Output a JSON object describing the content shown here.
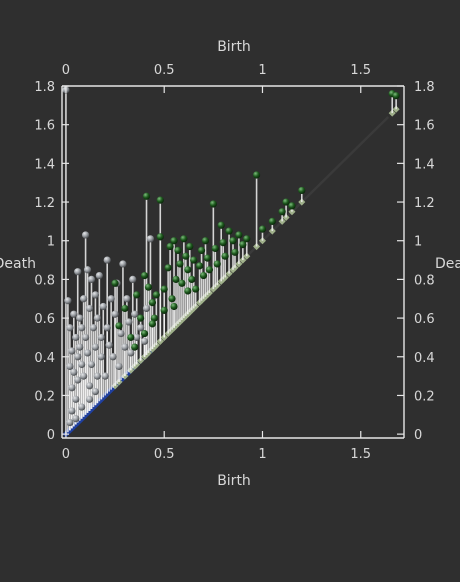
{
  "chart_data": {
    "type": "scatter",
    "title": "",
    "xlabel": "Birth",
    "ylabel": "Death",
    "x2label": "Birth",
    "y2label": "Death",
    "xlim": [
      -0.02,
      1.72
    ],
    "ylim": [
      -0.02,
      1.8
    ],
    "xticks": [
      0,
      0.5,
      1,
      1.5
    ],
    "xtick_labels": [
      "0",
      "0.5",
      "1",
      "1.5"
    ],
    "yticks": [
      0,
      0.2,
      0.4,
      0.6,
      0.8,
      1,
      1.2,
      1.4,
      1.6,
      1.8
    ],
    "ytick_labels": [
      "0",
      "0.2",
      "0.4",
      "0.6",
      "0.8",
      "1",
      "1.2",
      "1.4",
      "1.6",
      "1.8"
    ],
    "grid": false,
    "legend": "none",
    "diagonal": [
      [
        0,
        0
      ],
      [
        1.64,
        1.64
      ]
    ],
    "colors": {
      "background": "#2f2f2f",
      "axes": "#e6e6e6",
      "diagonal": "#3a3a3a",
      "stem": "#f2f2f2"
    },
    "series": [
      {
        "color": "#9a9ea3",
        "diagonal_color": "#1f3f9f",
        "points": [
          [
            0.0,
            1.78
          ],
          [
            0.01,
            0.69
          ],
          [
            0.02,
            0.35
          ],
          [
            0.02,
            0.55
          ],
          [
            0.03,
            0.24
          ],
          [
            0.03,
            0.43
          ],
          [
            0.04,
            0.32
          ],
          [
            0.04,
            0.62
          ],
          [
            0.05,
            0.5
          ],
          [
            0.05,
            0.18
          ],
          [
            0.06,
            0.4
          ],
          [
            0.06,
            0.28
          ],
          [
            0.06,
            0.84
          ],
          [
            0.07,
            0.6
          ],
          [
            0.07,
            0.45
          ],
          [
            0.08,
            0.36
          ],
          [
            0.08,
            0.55
          ],
          [
            0.09,
            0.3
          ],
          [
            0.09,
            0.7
          ],
          [
            0.1,
            1.03
          ],
          [
            0.1,
            0.5
          ],
          [
            0.11,
            0.85
          ],
          [
            0.11,
            0.42
          ],
          [
            0.12,
            0.25
          ],
          [
            0.12,
            0.65
          ],
          [
            0.13,
            0.36
          ],
          [
            0.13,
            0.8
          ],
          [
            0.14,
            0.55
          ],
          [
            0.15,
            0.45
          ],
          [
            0.15,
            0.72
          ],
          [
            0.16,
            0.6
          ],
          [
            0.16,
            0.3
          ],
          [
            0.17,
            0.82
          ],
          [
            0.18,
            0.5
          ],
          [
            0.18,
            0.4
          ],
          [
            0.19,
            0.66
          ],
          [
            0.2,
            0.3
          ],
          [
            0.21,
            0.9
          ],
          [
            0.21,
            0.55
          ],
          [
            0.22,
            0.46
          ],
          [
            0.23,
            0.7
          ],
          [
            0.24,
            0.4
          ],
          [
            0.25,
            0.62
          ],
          [
            0.26,
            0.78
          ],
          [
            0.27,
            0.35
          ],
          [
            0.28,
            0.52
          ],
          [
            0.29,
            0.88
          ],
          [
            0.3,
            0.45
          ],
          [
            0.31,
            0.7
          ],
          [
            0.32,
            0.58
          ],
          [
            0.33,
            0.42
          ],
          [
            0.34,
            0.8
          ],
          [
            0.35,
            0.62
          ],
          [
            0.36,
            0.5
          ],
          [
            0.38,
            0.55
          ],
          [
            0.4,
            0.48
          ],
          [
            0.41,
            0.65
          ],
          [
            0.43,
            1.01
          ],
          [
            0.03,
            0.12
          ],
          [
            0.05,
            0.08
          ],
          [
            0.08,
            0.14
          ],
          [
            0.02,
            0.06
          ],
          [
            0.12,
            0.18
          ],
          [
            0.15,
            0.22
          ]
        ]
      },
      {
        "color": "#1e5a1e",
        "diagonal_color": "#9fb08a",
        "points": [
          [
            0.41,
            1.23
          ],
          [
            0.48,
            1.21
          ],
          [
            0.48,
            1.02
          ],
          [
            0.53,
            0.97
          ],
          [
            0.55,
            1.0
          ],
          [
            0.57,
            0.95
          ],
          [
            0.58,
            0.88
          ],
          [
            0.6,
            1.01
          ],
          [
            0.61,
            0.92
          ],
          [
            0.62,
            0.85
          ],
          [
            0.63,
            0.97
          ],
          [
            0.64,
            0.8
          ],
          [
            0.65,
            0.9
          ],
          [
            0.66,
            0.75
          ],
          [
            0.68,
            0.87
          ],
          [
            0.69,
            0.95
          ],
          [
            0.7,
            0.82
          ],
          [
            0.71,
            1.0
          ],
          [
            0.72,
            0.91
          ],
          [
            0.73,
            0.85
          ],
          [
            0.75,
            1.19
          ],
          [
            0.76,
            0.96
          ],
          [
            0.77,
            0.88
          ],
          [
            0.79,
            1.08
          ],
          [
            0.8,
            0.99
          ],
          [
            0.81,
            0.92
          ],
          [
            0.83,
            1.05
          ],
          [
            0.85,
            1.0
          ],
          [
            0.86,
            0.94
          ],
          [
            0.88,
            1.03
          ],
          [
            0.9,
            0.98
          ],
          [
            0.92,
            1.01
          ],
          [
            0.97,
            1.34
          ],
          [
            1.0,
            1.06
          ],
          [
            1.05,
            1.1
          ],
          [
            1.1,
            1.15
          ],
          [
            1.12,
            1.2
          ],
          [
            1.15,
            1.18
          ],
          [
            1.2,
            1.26
          ],
          [
            1.66,
            1.76
          ],
          [
            1.68,
            1.75
          ],
          [
            0.25,
            0.78
          ],
          [
            0.27,
            0.56
          ],
          [
            0.3,
            0.65
          ],
          [
            0.33,
            0.5
          ],
          [
            0.36,
            0.72
          ],
          [
            0.38,
            0.6
          ],
          [
            0.4,
            0.82
          ],
          [
            0.42,
            0.76
          ],
          [
            0.44,
            0.68
          ],
          [
            0.46,
            0.72
          ],
          [
            0.5,
            0.75
          ],
          [
            0.52,
            0.86
          ],
          [
            0.54,
            0.7
          ],
          [
            0.56,
            0.8
          ],
          [
            0.59,
            0.78
          ],
          [
            0.62,
            0.74
          ],
          [
            0.45,
            0.6
          ],
          [
            0.5,
            0.64
          ],
          [
            0.55,
            0.66
          ],
          [
            0.35,
            0.45
          ],
          [
            0.4,
            0.52
          ],
          [
            0.44,
            0.57
          ]
        ]
      }
    ]
  }
}
